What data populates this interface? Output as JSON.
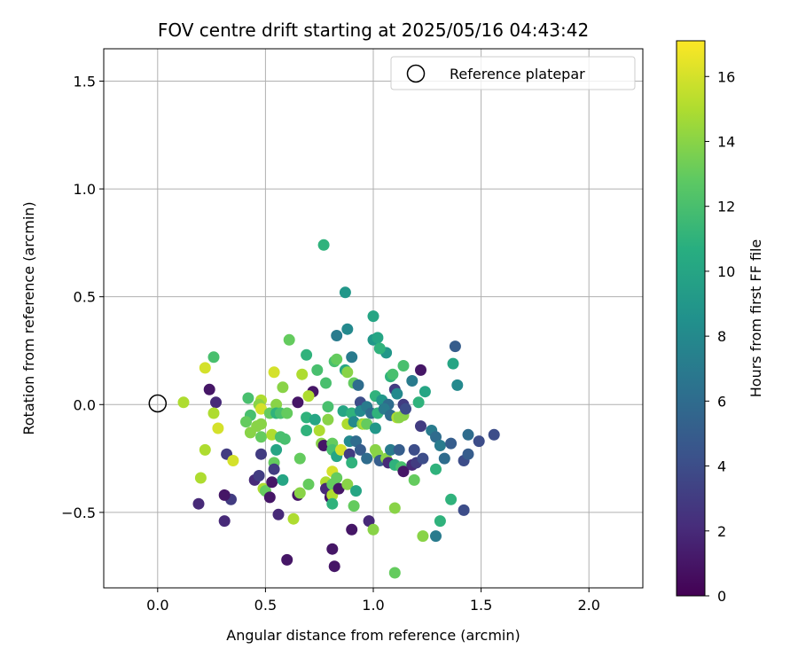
{
  "chart_data": {
    "type": "scatter",
    "title": "FOV centre drift starting at 2025/05/16 04:43:42",
    "xlabel": "Angular distance from reference (arcmin)",
    "ylabel": "Rotation from reference (arcmin)",
    "xlim": [
      -0.25,
      2.25
    ],
    "ylim": [
      -0.85,
      1.65
    ],
    "xticks": [
      0.0,
      0.5,
      1.0,
      1.5,
      2.0
    ],
    "xtick_labels": [
      "0.0",
      "0.5",
      "1.0",
      "1.5",
      "2.0"
    ],
    "yticks": [
      -0.5,
      0.0,
      0.5,
      1.0,
      1.5
    ],
    "ytick_labels": [
      "−0.5",
      "0.0",
      "0.5",
      "1.0",
      "1.5"
    ],
    "grid": true,
    "legend": {
      "position": "top-right",
      "entries": [
        "Reference platepar"
      ]
    },
    "reference_point": {
      "x": 0.0,
      "y": 0.0,
      "label": "Reference platepar"
    },
    "colorbar": {
      "label": "Hours from first FF file",
      "range": [
        0,
        17.1
      ],
      "ticks": [
        0,
        2,
        4,
        6,
        8,
        10,
        12,
        14,
        16
      ],
      "tick_labels": [
        "0",
        "2",
        "4",
        "6",
        "8",
        "10",
        "12",
        "14",
        "16"
      ],
      "colormap": "viridis"
    },
    "series": [
      {
        "points": [
          [
            0.77,
            0.74,
            11
          ],
          [
            0.87,
            0.52,
            9
          ],
          [
            1.0,
            0.41,
            10
          ],
          [
            0.83,
            0.32,
            7
          ],
          [
            0.88,
            0.35,
            8
          ],
          [
            0.61,
            0.3,
            13
          ],
          [
            1.0,
            0.3,
            9
          ],
          [
            1.02,
            0.31,
            10
          ],
          [
            1.38,
            0.27,
            5
          ],
          [
            0.26,
            0.22,
            12
          ],
          [
            0.22,
            0.17,
            16
          ],
          [
            0.69,
            0.23,
            11
          ],
          [
            0.82,
            0.2,
            12
          ],
          [
            0.83,
            0.21,
            13
          ],
          [
            0.9,
            0.22,
            7
          ],
          [
            1.06,
            0.24,
            9
          ],
          [
            1.03,
            0.26,
            11
          ],
          [
            1.37,
            0.19,
            10
          ],
          [
            1.14,
            0.18,
            12
          ],
          [
            1.22,
            0.16,
            1
          ],
          [
            0.54,
            0.15,
            16
          ],
          [
            0.67,
            0.14,
            15
          ],
          [
            0.74,
            0.16,
            12
          ],
          [
            0.78,
            0.1,
            12
          ],
          [
            0.87,
            0.16,
            10
          ],
          [
            0.88,
            0.15,
            14
          ],
          [
            0.91,
            0.1,
            13
          ],
          [
            0.93,
            0.09,
            6
          ],
          [
            1.08,
            0.13,
            11
          ],
          [
            1.09,
            0.14,
            12
          ],
          [
            1.18,
            0.11,
            7
          ],
          [
            1.39,
            0.09,
            8
          ],
          [
            0.24,
            0.07,
            1
          ],
          [
            0.27,
            0.01,
            2
          ],
          [
            0.42,
            0.03,
            12
          ],
          [
            0.12,
            0.01,
            15
          ],
          [
            0.58,
            0.08,
            14
          ],
          [
            0.72,
            0.06,
            1
          ],
          [
            0.7,
            0.04,
            15
          ],
          [
            0.65,
            0.01,
            1
          ],
          [
            0.94,
            0.01,
            4
          ],
          [
            1.01,
            0.04,
            11
          ],
          [
            1.04,
            0.02,
            9
          ],
          [
            1.07,
            0.0,
            6
          ],
          [
            1.1,
            0.07,
            3
          ],
          [
            1.11,
            0.05,
            8
          ],
          [
            1.14,
            0.0,
            3
          ],
          [
            1.21,
            0.01,
            11
          ],
          [
            1.24,
            0.06,
            10
          ],
          [
            0.48,
            0.02,
            15
          ],
          [
            0.47,
            0.0,
            14
          ],
          [
            0.55,
            0.0,
            14
          ],
          [
            0.48,
            -0.02,
            16
          ],
          [
            0.26,
            -0.04,
            15
          ],
          [
            0.28,
            -0.11,
            16
          ],
          [
            0.43,
            -0.05,
            12
          ],
          [
            0.41,
            -0.08,
            13
          ],
          [
            0.46,
            -0.1,
            14
          ],
          [
            0.48,
            -0.09,
            14
          ],
          [
            0.52,
            -0.04,
            13
          ],
          [
            0.55,
            -0.04,
            11
          ],
          [
            0.57,
            -0.04,
            12
          ],
          [
            0.6,
            -0.04,
            13
          ],
          [
            0.69,
            -0.06,
            11
          ],
          [
            0.73,
            -0.07,
            10
          ],
          [
            0.79,
            -0.07,
            14
          ],
          [
            0.79,
            -0.01,
            12
          ],
          [
            0.86,
            -0.03,
            10
          ],
          [
            0.9,
            -0.04,
            11
          ],
          [
            0.94,
            -0.03,
            8
          ],
          [
            0.97,
            -0.01,
            7
          ],
          [
            0.99,
            -0.04,
            6
          ],
          [
            1.02,
            -0.04,
            11
          ],
          [
            1.05,
            -0.02,
            7
          ],
          [
            1.08,
            -0.05,
            6
          ],
          [
            1.11,
            -0.06,
            15
          ],
          [
            1.12,
            -0.06,
            14
          ],
          [
            1.14,
            -0.05,
            14
          ],
          [
            1.15,
            -0.02,
            4
          ],
          [
            0.43,
            -0.13,
            14
          ],
          [
            0.48,
            -0.15,
            13
          ],
          [
            0.53,
            -0.14,
            15
          ],
          [
            0.57,
            -0.15,
            12
          ],
          [
            0.59,
            -0.16,
            12
          ],
          [
            0.69,
            -0.12,
            11
          ],
          [
            0.75,
            -0.12,
            15
          ],
          [
            0.76,
            -0.18,
            14
          ],
          [
            0.77,
            -0.19,
            1
          ],
          [
            0.81,
            -0.18,
            13
          ],
          [
            0.88,
            -0.09,
            15
          ],
          [
            0.89,
            -0.09,
            15
          ],
          [
            0.91,
            -0.08,
            8
          ],
          [
            0.95,
            -0.09,
            14
          ],
          [
            0.96,
            -0.09,
            15
          ],
          [
            0.97,
            -0.09,
            13
          ],
          [
            1.01,
            -0.11,
            9
          ],
          [
            1.22,
            -0.1,
            3
          ],
          [
            1.27,
            -0.12,
            7
          ],
          [
            1.29,
            -0.15,
            6
          ],
          [
            1.31,
            -0.19,
            7
          ],
          [
            1.36,
            -0.18,
            5
          ],
          [
            1.44,
            -0.14,
            6
          ],
          [
            1.49,
            -0.17,
            4
          ],
          [
            1.56,
            -0.14,
            4
          ],
          [
            0.22,
            -0.21,
            15
          ],
          [
            0.32,
            -0.23,
            3
          ],
          [
            0.35,
            -0.26,
            16
          ],
          [
            0.48,
            -0.23,
            3
          ],
          [
            0.54,
            -0.27,
            13
          ],
          [
            0.55,
            -0.21,
            10
          ],
          [
            0.66,
            -0.25,
            13
          ],
          [
            0.81,
            -0.21,
            12
          ],
          [
            0.83,
            -0.24,
            10
          ],
          [
            0.85,
            -0.21,
            16
          ],
          [
            0.89,
            -0.17,
            8
          ],
          [
            0.89,
            -0.23,
            3
          ],
          [
            0.9,
            -0.27,
            11
          ],
          [
            0.92,
            -0.17,
            6
          ],
          [
            0.94,
            -0.21,
            5
          ],
          [
            0.97,
            -0.25,
            6
          ],
          [
            1.01,
            -0.21,
            14
          ],
          [
            1.02,
            -0.23,
            14
          ],
          [
            1.03,
            -0.26,
            5
          ],
          [
            1.06,
            -0.25,
            14
          ],
          [
            1.07,
            -0.27,
            2
          ],
          [
            1.08,
            -0.21,
            7
          ],
          [
            1.1,
            -0.28,
            11
          ],
          [
            1.12,
            -0.21,
            5
          ],
          [
            1.13,
            -0.29,
            12
          ],
          [
            1.14,
            -0.31,
            1
          ],
          [
            1.18,
            -0.28,
            2
          ],
          [
            1.19,
            -0.21,
            4
          ],
          [
            1.2,
            -0.27,
            3
          ],
          [
            1.23,
            -0.25,
            4
          ],
          [
            1.29,
            -0.3,
            11
          ],
          [
            1.33,
            -0.25,
            6
          ],
          [
            1.42,
            -0.26,
            4
          ],
          [
            1.44,
            -0.23,
            5
          ],
          [
            0.2,
            -0.34,
            15
          ],
          [
            0.34,
            -0.44,
            3
          ],
          [
            0.31,
            -0.42,
            1
          ],
          [
            0.45,
            -0.35,
            2
          ],
          [
            0.47,
            -0.33,
            3
          ],
          [
            0.49,
            -0.39,
            15
          ],
          [
            0.5,
            -0.4,
            13
          ],
          [
            0.52,
            -0.43,
            1
          ],
          [
            0.53,
            -0.36,
            1
          ],
          [
            0.54,
            -0.3,
            3
          ],
          [
            0.58,
            -0.35,
            10
          ],
          [
            0.65,
            -0.42,
            1
          ],
          [
            0.66,
            -0.41,
            14
          ],
          [
            0.7,
            -0.37,
            13
          ],
          [
            0.78,
            -0.36,
            15
          ],
          [
            0.78,
            -0.39,
            2
          ],
          [
            0.8,
            -0.43,
            1
          ],
          [
            0.81,
            -0.37,
            13
          ],
          [
            0.81,
            -0.31,
            16
          ],
          [
            0.81,
            -0.42,
            15
          ],
          [
            0.81,
            -0.46,
            11
          ],
          [
            0.83,
            -0.34,
            13
          ],
          [
            0.84,
            -0.39,
            1
          ],
          [
            0.88,
            -0.37,
            14
          ],
          [
            0.91,
            -0.47,
            13
          ],
          [
            0.92,
            -0.4,
            10
          ],
          [
            1.1,
            -0.48,
            14
          ],
          [
            1.19,
            -0.35,
            13
          ],
          [
            1.36,
            -0.44,
            11
          ],
          [
            0.19,
            -0.46,
            2
          ],
          [
            0.31,
            -0.54,
            2
          ],
          [
            0.56,
            -0.51,
            2
          ],
          [
            0.63,
            -0.53,
            15
          ],
          [
            0.81,
            -0.67,
            1
          ],
          [
            0.82,
            -0.75,
            1
          ],
          [
            0.9,
            -0.58,
            1
          ],
          [
            0.98,
            -0.54,
            2
          ],
          [
            0.6,
            -0.72,
            1
          ],
          [
            1.0,
            -0.58,
            14
          ],
          [
            1.1,
            -0.78,
            13
          ],
          [
            1.23,
            -0.61,
            14
          ],
          [
            1.29,
            -0.61,
            7
          ],
          [
            1.31,
            -0.54,
            11
          ],
          [
            1.42,
            -0.49,
            4
          ]
        ]
      }
    ]
  }
}
